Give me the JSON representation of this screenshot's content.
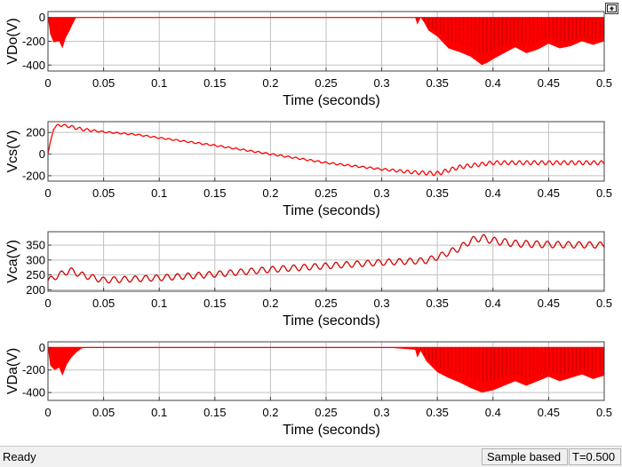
{
  "window": {
    "undock_icon": "undock-arrow-icon"
  },
  "status": {
    "ready": "Ready",
    "mode": "Sample based",
    "time": "T=0.500"
  },
  "colors": {
    "trace": "#ff0000",
    "axes_bg": "#ffffff",
    "grid": "#c0c0c0",
    "frame": "#404040"
  },
  "chart_data": [
    {
      "type": "line",
      "ylabel": "VDo(V)",
      "xlabel": "Time (seconds)",
      "xlim": [
        0,
        0.5
      ],
      "ylim": [
        -450,
        50
      ],
      "xticks": [
        0,
        0.05,
        0.1,
        0.15,
        0.2,
        0.25,
        0.3,
        0.35,
        0.4,
        0.45,
        0.5
      ],
      "xtick_labels": [
        "0",
        "0.05",
        "0.1",
        "0.15",
        "0.2",
        "0.25",
        "0.3",
        "0.35",
        "0.4",
        "0.45",
        "0.5"
      ],
      "yticks": [
        0,
        -200,
        -400
      ],
      "ytick_labels": [
        "0",
        "-200",
        "-400"
      ],
      "grid": true,
      "series": [
        {
          "color": "#ff0000",
          "band": [
            [
              0.0,
              0,
              -10
            ],
            [
              0.002,
              0,
              -140
            ],
            [
              0.005,
              0,
              -210
            ],
            [
              0.01,
              0,
              -200
            ],
            [
              0.013,
              0,
              -260
            ],
            [
              0.016,
              0,
              -170
            ],
            [
              0.019,
              0,
              -120
            ],
            [
              0.022,
              0,
              -60
            ],
            [
              0.025,
              0,
              -5
            ],
            [
              0.027,
              0,
              0
            ],
            [
              0.33,
              0,
              0
            ],
            [
              0.332,
              0,
              -60
            ],
            [
              0.335,
              0,
              0
            ],
            [
              0.338,
              0,
              -40
            ],
            [
              0.342,
              0,
              -110
            ],
            [
              0.35,
              0,
              -160
            ],
            [
              0.36,
              0,
              -260
            ],
            [
              0.37,
              0,
              -290
            ],
            [
              0.38,
              0,
              -330
            ],
            [
              0.39,
              0,
              -400
            ],
            [
              0.395,
              0,
              -380
            ],
            [
              0.4,
              0,
              -350
            ],
            [
              0.41,
              0,
              -300
            ],
            [
              0.42,
              0,
              -250
            ],
            [
              0.43,
              0,
              -300
            ],
            [
              0.44,
              0,
              -270
            ],
            [
              0.45,
              0,
              -220
            ],
            [
              0.46,
              0,
              -260
            ],
            [
              0.47,
              0,
              -240
            ],
            [
              0.48,
              0,
              -200
            ],
            [
              0.49,
              0,
              -230
            ],
            [
              0.5,
              0,
              -200
            ]
          ]
        }
      ]
    },
    {
      "type": "line",
      "ylabel": "Vcs(V)",
      "xlabel": "Time (seconds)",
      "xlim": [
        0,
        0.5
      ],
      "ylim": [
        -250,
        300
      ],
      "xticks": [
        0,
        0.05,
        0.1,
        0.15,
        0.2,
        0.25,
        0.3,
        0.35,
        0.4,
        0.45,
        0.5
      ],
      "xtick_labels": [
        "0",
        "0.05",
        "0.1",
        "0.15",
        "0.2",
        "0.25",
        "0.3",
        "0.35",
        "0.4",
        "0.45",
        "0.5"
      ],
      "yticks": [
        200,
        0,
        -200
      ],
      "ytick_labels": [
        "200",
        "0",
        "-200"
      ],
      "grid": true,
      "series": [
        {
          "color": "#ff0000",
          "x": [
            0,
            0.005,
            0.01,
            0.02,
            0.03,
            0.05,
            0.08,
            0.1,
            0.15,
            0.2,
            0.25,
            0.3,
            0.33,
            0.35,
            0.37,
            0.4,
            0.45,
            0.5
          ],
          "y": [
            0,
            240,
            270,
            255,
            230,
            205,
            180,
            150,
            80,
            0,
            -80,
            -140,
            -170,
            -180,
            -120,
            -80,
            -80,
            -80
          ],
          "ripple": [
            [
              0,
              10
            ],
            [
              0.03,
              14
            ],
            [
              0.05,
              6
            ],
            [
              0.3,
              8
            ],
            [
              0.32,
              14
            ],
            [
              0.35,
              20
            ],
            [
              0.37,
              18
            ],
            [
              0.5,
              18
            ]
          ],
          "ripple_period": 0.0067
        }
      ]
    },
    {
      "type": "line",
      "ylabel": "Vca(V)",
      "xlabel": "Time (seconds)",
      "xlim": [
        0,
        0.5
      ],
      "ylim": [
        195,
        395
      ],
      "xticks": [
        0,
        0.05,
        0.1,
        0.15,
        0.2,
        0.25,
        0.3,
        0.35,
        0.4,
        0.45,
        0.5
      ],
      "xtick_labels": [
        "0",
        "0.05",
        "0.1",
        "0.15",
        "0.2",
        "0.25",
        "0.3",
        "0.35",
        "0.4",
        "0.45",
        "0.5"
      ],
      "yticks": [
        350,
        300,
        250,
        200
      ],
      "ytick_labels": [
        "350",
        "300",
        "250",
        "200"
      ],
      "grid": true,
      "series": [
        {
          "color": "#d40000",
          "x": [
            0,
            0.01,
            0.02,
            0.03,
            0.05,
            0.1,
            0.15,
            0.2,
            0.25,
            0.3,
            0.34,
            0.35,
            0.37,
            0.38,
            0.39,
            0.4,
            0.42,
            0.45,
            0.5
          ],
          "y": [
            230,
            250,
            265,
            250,
            232,
            240,
            252,
            268,
            280,
            292,
            298,
            310,
            340,
            365,
            375,
            365,
            355,
            352,
            350
          ],
          "ripple": [
            [
              0,
              10
            ],
            [
              0.05,
              10
            ],
            [
              0.3,
              10
            ],
            [
              0.35,
              10
            ],
            [
              0.4,
              12
            ],
            [
              0.5,
              10
            ]
          ],
          "ripple_period": 0.0095
        }
      ]
    },
    {
      "type": "line",
      "ylabel": "VDa(V)",
      "xlabel": "Time (seconds)",
      "xlim": [
        0,
        0.5
      ],
      "ylim": [
        -470,
        50
      ],
      "xticks": [
        0,
        0.05,
        0.1,
        0.15,
        0.2,
        0.25,
        0.3,
        0.35,
        0.4,
        0.45,
        0.5
      ],
      "xtick_labels": [
        "0",
        "0.05",
        "0.1",
        "0.15",
        "0.2",
        "0.25",
        "0.3",
        "0.35",
        "0.4",
        "0.45",
        "0.5"
      ],
      "yticks": [
        0,
        -200,
        -400
      ],
      "ytick_labels": [
        "0",
        "-200",
        "-400"
      ],
      "grid": true,
      "series": [
        {
          "color": "#ff0000",
          "band": [
            [
              0.0,
              0,
              -10
            ],
            [
              0.002,
              0,
              -160
            ],
            [
              0.006,
              0,
              -200
            ],
            [
              0.01,
              0,
              -180
            ],
            [
              0.013,
              0,
              -250
            ],
            [
              0.017,
              0,
              -150
            ],
            [
              0.021,
              0,
              -90
            ],
            [
              0.026,
              0,
              -40
            ],
            [
              0.03,
              0,
              -10
            ],
            [
              0.035,
              0,
              0
            ],
            [
              0.3,
              0,
              0
            ],
            [
              0.31,
              0,
              -5
            ],
            [
              0.33,
              0,
              -20
            ],
            [
              0.332,
              0,
              -90
            ],
            [
              0.335,
              0,
              -30
            ],
            [
              0.34,
              0,
              -120
            ],
            [
              0.35,
              0,
              -220
            ],
            [
              0.36,
              0,
              -270
            ],
            [
              0.37,
              0,
              -310
            ],
            [
              0.38,
              0,
              -360
            ],
            [
              0.39,
              0,
              -400
            ],
            [
              0.4,
              0,
              -380
            ],
            [
              0.41,
              0,
              -340
            ],
            [
              0.42,
              0,
              -300
            ],
            [
              0.43,
              0,
              -340
            ],
            [
              0.44,
              0,
              -300
            ],
            [
              0.45,
              0,
              -260
            ],
            [
              0.46,
              0,
              -300
            ],
            [
              0.47,
              0,
              -270
            ],
            [
              0.48,
              0,
              -240
            ],
            [
              0.49,
              0,
              -280
            ],
            [
              0.5,
              0,
              -250
            ]
          ]
        }
      ]
    }
  ]
}
